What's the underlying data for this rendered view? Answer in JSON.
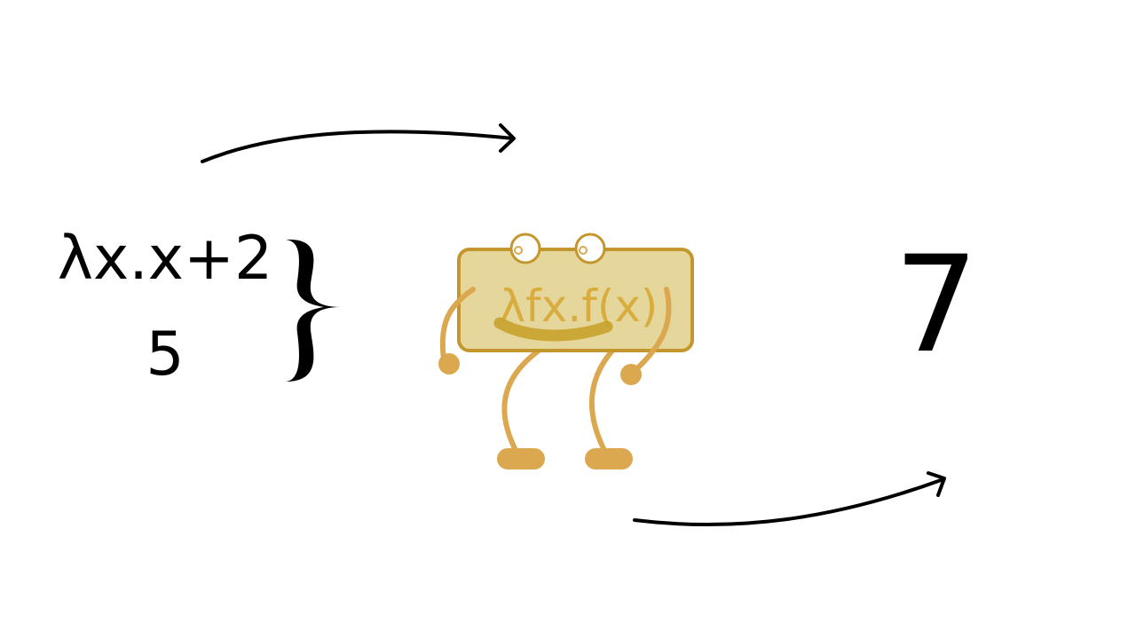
{
  "input": {
    "function": "λx.x+2",
    "argument": "5"
  },
  "machine": {
    "label": "λfx.f(x)"
  },
  "output": {
    "result": "7"
  },
  "colors": {
    "ink": "#000000",
    "machine_fill": "#e5d69c",
    "machine_stroke": "#c4962e",
    "machine_text": "#d9ad3d",
    "limbs": "#dca84f",
    "smile": "#c8a22c"
  },
  "icons": {
    "brace": "right-curly-brace",
    "arrows": "curved-right-arrow"
  }
}
